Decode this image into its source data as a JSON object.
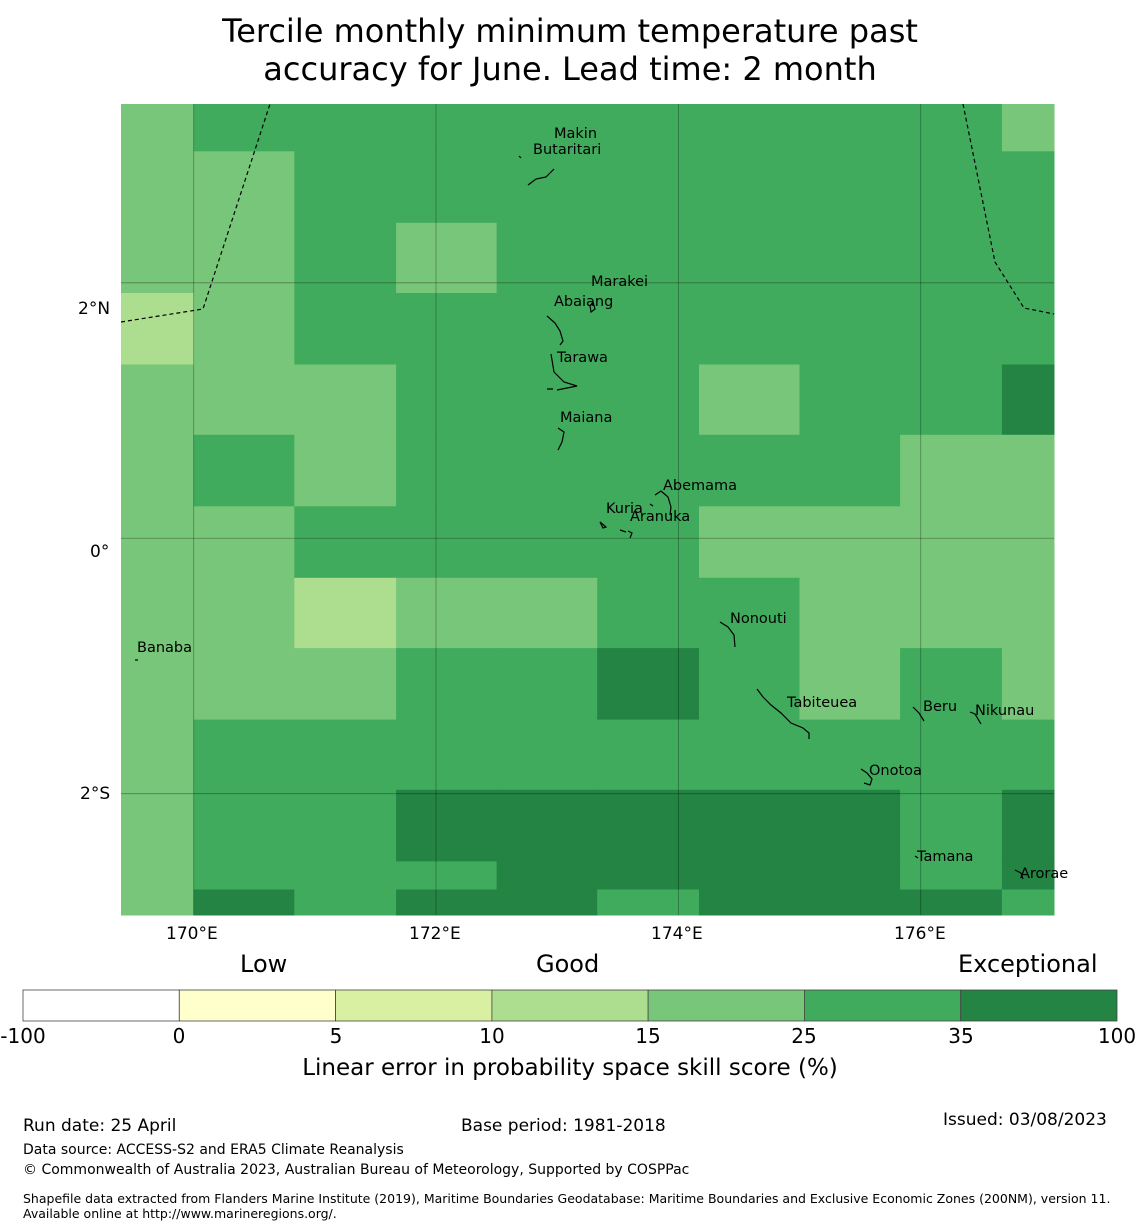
{
  "title": {
    "line1": "Tercile monthly minimum temperature past",
    "line2": "accuracy for June. Lead time: 2 month"
  },
  "map": {
    "lon_range": [
      169.4,
      177.1
    ],
    "lat_range": [
      -2.95,
      3.4
    ],
    "grid_origin": {
      "lon": 169.4,
      "lat": 3.4
    },
    "cell_lon_edges": [
      169.4,
      170.0,
      170.83,
      171.67,
      172.5,
      173.33,
      174.17,
      175.0,
      175.83,
      176.67,
      177.1
    ],
    "cell_lat_edges": [
      3.4,
      3.03,
      2.47,
      1.92,
      1.36,
      0.81,
      0.25,
      -0.31,
      -0.86,
      -1.42,
      -1.97,
      -2.53,
      -2.75,
      -2.95
    ],
    "skill_classes": [
      [
        4,
        5,
        5,
        5,
        5,
        5,
        5,
        5,
        5,
        4
      ],
      [
        4,
        4,
        5,
        5,
        5,
        5,
        5,
        5,
        5,
        5
      ],
      [
        4,
        4,
        5,
        4,
        5,
        5,
        5,
        5,
        5,
        5
      ],
      [
        3,
        4,
        5,
        5,
        5,
        5,
        5,
        5,
        5,
        5
      ],
      [
        4,
        4,
        4,
        5,
        5,
        5,
        4,
        5,
        5,
        6
      ],
      [
        4,
        5,
        4,
        5,
        5,
        5,
        5,
        5,
        4,
        4
      ],
      [
        4,
        4,
        5,
        5,
        5,
        5,
        4,
        4,
        4,
        4
      ],
      [
        4,
        4,
        3,
        4,
        4,
        5,
        5,
        4,
        4,
        4
      ],
      [
        4,
        4,
        4,
        5,
        5,
        6,
        5,
        4,
        5,
        4
      ],
      [
        4,
        5,
        5,
        5,
        5,
        5,
        5,
        5,
        5,
        5
      ],
      [
        4,
        5,
        5,
        6,
        6,
        6,
        6,
        6,
        5,
        6
      ],
      [
        4,
        5,
        5,
        5,
        6,
        6,
        6,
        6,
        5,
        6
      ],
      [
        4,
        6,
        5,
        6,
        6,
        5,
        6,
        6,
        6,
        5
      ]
    ],
    "gridlines": {
      "longitudes": [
        170,
        172,
        174,
        176
      ],
      "latitudes": [
        2,
        0,
        -2
      ]
    },
    "lat_labels": [
      "2°N",
      "0°",
      "2°S"
    ],
    "lon_labels": [
      "170°E",
      "172°E",
      "174°E",
      "176°E"
    ],
    "islands": [
      {
        "name": "Makin",
        "lon": 172.97,
        "lat": 3.16
      },
      {
        "name": "Butaritari",
        "lon": 172.8,
        "lat": 3.03
      },
      {
        "name": "Marakei",
        "lon": 173.28,
        "lat": 2.0
      },
      {
        "name": "Abaiang",
        "lon": 172.97,
        "lat": 1.84
      },
      {
        "name": "Tarawa",
        "lon": 173.0,
        "lat": 1.4
      },
      {
        "name": "Maiana",
        "lon": 173.02,
        "lat": 0.93
      },
      {
        "name": "Abemama",
        "lon": 173.87,
        "lat": 0.4
      },
      {
        "name": "Kuria",
        "lon": 173.4,
        "lat": 0.22
      },
      {
        "name": "Aranuka",
        "lon": 173.6,
        "lat": 0.16
      },
      {
        "name": "Nonouti",
        "lon": 174.43,
        "lat": -0.64
      },
      {
        "name": "Banaba",
        "lon": 169.53,
        "lat": -0.87
      },
      {
        "name": "Beru",
        "lon": 176.02,
        "lat": -1.33
      },
      {
        "name": "Tabiteuea",
        "lon": 174.9,
        "lat": -1.3
      },
      {
        "name": "Nikunau",
        "lon": 176.45,
        "lat": -1.36
      },
      {
        "name": "Onotoa",
        "lon": 175.57,
        "lat": -1.83
      },
      {
        "name": "Tamana",
        "lon": 175.97,
        "lat": -2.5
      },
      {
        "name": "Arorae",
        "lon": 176.82,
        "lat": -2.64
      }
    ]
  },
  "colorbar": {
    "category_labels": {
      "low": "Low",
      "good": "Good",
      "exceptional": "Exceptional"
    },
    "classes": [
      {
        "from": -100,
        "to": 0,
        "color": "#ffffff"
      },
      {
        "from": 0,
        "to": 5,
        "color": "#ffffcc"
      },
      {
        "from": 5,
        "to": 10,
        "color": "#d9f0a3"
      },
      {
        "from": 10,
        "to": 15,
        "color": "#addd8e"
      },
      {
        "from": 15,
        "to": 25,
        "color": "#78c679"
      },
      {
        "from": 25,
        "to": 35,
        "color": "#41ab5d"
      },
      {
        "from": 35,
        "to": 100,
        "color": "#238443"
      }
    ],
    "ticks": [
      "-100",
      "0",
      "5",
      "10",
      "15",
      "25",
      "35",
      "100"
    ],
    "label": "Linear error in probability space skill score (%)"
  },
  "footer": {
    "run_date": "Run date: 25 April",
    "base_period": "Base period: 1981-2018",
    "issued": "Issued: 03/08/2023",
    "data_source": "Data source: ACCESS-S2 and ERA5 Climate Reanalysis",
    "copyright": "© Commonwealth of Australia 2023, Australian Bureau of Meteorology, Supported by COSPPac",
    "shapefile": "Shapefile data extracted from Flanders Marine Institute (2019), Maritime Boundaries Geodatabase: Maritime Boundaries and Exclusive Economic Zones (200NM), version 11. Available online at http://www.marineregions.org/."
  }
}
